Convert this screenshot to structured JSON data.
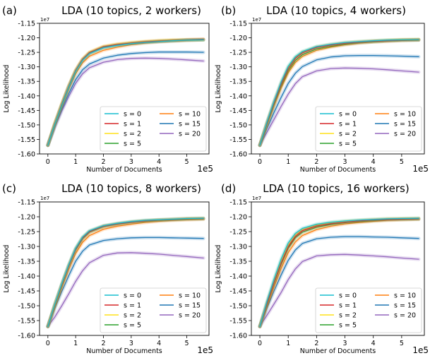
{
  "figure": {
    "xlabel": "Number of Documents",
    "ylabel": "Log Likelihood",
    "x_offset_text": "1e5",
    "y_offset_text": "1e7"
  },
  "legend_labels": [
    "s = 0",
    "s = 1",
    "s = 2",
    "s = 5",
    "s = 10",
    "s = 15",
    "s = 20"
  ],
  "series_colors": {
    "s = 0": "#17becf",
    "s = 1": "#d62728",
    "s = 2": "#ffe119",
    "s = 5": "#2ca02c",
    "s = 10": "#ff7f0e",
    "s = 15": "#1f77b4",
    "s = 20": "#9467bd"
  },
  "chart_data": [
    {
      "panel_label": "(a)",
      "title": "LDA (10 topics, 2 workers)",
      "type": "line",
      "xlabel": "Number of Documents",
      "ylabel": "Log Likelihood",
      "x_ticks": [
        0,
        1,
        2,
        3,
        4,
        5
      ],
      "y_ticks": [
        -1.6,
        -1.55,
        -1.5,
        -1.45,
        -1.4,
        -1.35,
        -1.3,
        -1.25,
        -1.2,
        -1.15
      ],
      "xlim": [
        -0.3,
        5.8
      ],
      "ylim": [
        -1.6,
        -1.15
      ],
      "legend_position": "lower right",
      "x": [
        0,
        0.25,
        0.5,
        0.75,
        1.0,
        1.25,
        1.5,
        2.0,
        2.5,
        3.0,
        3.5,
        4.0,
        4.5,
        5.0,
        5.6
      ],
      "series": [
        {
          "name": "s = 0",
          "values": [
            -1.57,
            -1.498,
            -1.432,
            -1.37,
            -1.316,
            -1.277,
            -1.254,
            -1.234,
            -1.226,
            -1.22,
            -1.216,
            -1.213,
            -1.21,
            -1.208,
            -1.207
          ]
        },
        {
          "name": "s = 1",
          "values": [
            -1.57,
            -1.496,
            -1.429,
            -1.367,
            -1.313,
            -1.274,
            -1.251,
            -1.231,
            -1.223,
            -1.218,
            -1.214,
            -1.211,
            -1.209,
            -1.207,
            -1.205
          ]
        },
        {
          "name": "s = 2",
          "values": [
            -1.57,
            -1.494,
            -1.427,
            -1.365,
            -1.311,
            -1.272,
            -1.249,
            -1.229,
            -1.221,
            -1.216,
            -1.212,
            -1.209,
            -1.207,
            -1.206,
            -1.205
          ]
        },
        {
          "name": "s = 5",
          "values": [
            -1.57,
            -1.497,
            -1.43,
            -1.368,
            -1.315,
            -1.276,
            -1.253,
            -1.233,
            -1.225,
            -1.219,
            -1.215,
            -1.212,
            -1.21,
            -1.208,
            -1.207
          ]
        },
        {
          "name": "s = 10",
          "values": [
            -1.57,
            -1.501,
            -1.436,
            -1.376,
            -1.324,
            -1.286,
            -1.263,
            -1.243,
            -1.232,
            -1.224,
            -1.218,
            -1.214,
            -1.211,
            -1.209,
            -1.207
          ]
        },
        {
          "name": "s = 15",
          "values": [
            -1.57,
            -1.505,
            -1.445,
            -1.392,
            -1.344,
            -1.31,
            -1.29,
            -1.27,
            -1.26,
            -1.254,
            -1.251,
            -1.249,
            -1.249,
            -1.249,
            -1.25
          ]
        },
        {
          "name": "s = 20",
          "values": [
            -1.57,
            -1.508,
            -1.452,
            -1.402,
            -1.357,
            -1.324,
            -1.303,
            -1.284,
            -1.275,
            -1.271,
            -1.27,
            -1.271,
            -1.273,
            -1.276,
            -1.28
          ]
        }
      ]
    },
    {
      "panel_label": "(b)",
      "title": "LDA (10 topics, 4 workers)",
      "type": "line",
      "xlabel": "Number of Documents",
      "ylabel": "Log Likelihood",
      "x_ticks": [
        0,
        1,
        2,
        3,
        4,
        5
      ],
      "y_ticks": [
        -1.6,
        -1.55,
        -1.5,
        -1.45,
        -1.4,
        -1.35,
        -1.3,
        -1.25,
        -1.2,
        -1.15
      ],
      "xlim": [
        -0.3,
        5.8
      ],
      "ylim": [
        -1.6,
        -1.15
      ],
      "legend_position": "lower right",
      "x": [
        0,
        0.25,
        0.5,
        0.75,
        1.0,
        1.25,
        1.5,
        2.0,
        2.5,
        3.0,
        3.5,
        4.0,
        4.5,
        5.0,
        5.6
      ],
      "series": [
        {
          "name": "s = 0",
          "values": [
            -1.57,
            -1.49,
            -1.418,
            -1.352,
            -1.298,
            -1.265,
            -1.247,
            -1.23,
            -1.222,
            -1.216,
            -1.213,
            -1.21,
            -1.208,
            -1.207,
            -1.206
          ]
        },
        {
          "name": "s = 1",
          "values": [
            -1.57,
            -1.494,
            -1.424,
            -1.36,
            -1.306,
            -1.271,
            -1.252,
            -1.233,
            -1.225,
            -1.219,
            -1.215,
            -1.212,
            -1.21,
            -1.208,
            -1.207
          ]
        },
        {
          "name": "s = 2",
          "values": [
            -1.57,
            -1.492,
            -1.421,
            -1.356,
            -1.302,
            -1.268,
            -1.249,
            -1.231,
            -1.223,
            -1.217,
            -1.213,
            -1.21,
            -1.208,
            -1.206,
            -1.205
          ]
        },
        {
          "name": "s = 5",
          "values": [
            -1.57,
            -1.497,
            -1.429,
            -1.366,
            -1.313,
            -1.278,
            -1.258,
            -1.238,
            -1.229,
            -1.222,
            -1.217,
            -1.214,
            -1.211,
            -1.209,
            -1.208
          ]
        },
        {
          "name": "s = 10",
          "values": [
            -1.57,
            -1.5,
            -1.434,
            -1.372,
            -1.32,
            -1.285,
            -1.264,
            -1.243,
            -1.232,
            -1.224,
            -1.218,
            -1.214,
            -1.211,
            -1.209,
            -1.207
          ]
        },
        {
          "name": "s = 15",
          "values": [
            -1.57,
            -1.512,
            -1.457,
            -1.405,
            -1.357,
            -1.322,
            -1.299,
            -1.276,
            -1.266,
            -1.262,
            -1.261,
            -1.261,
            -1.262,
            -1.263,
            -1.265
          ]
        },
        {
          "name": "s = 20",
          "values": [
            -1.57,
            -1.525,
            -1.481,
            -1.436,
            -1.394,
            -1.358,
            -1.334,
            -1.314,
            -1.306,
            -1.304,
            -1.305,
            -1.307,
            -1.31,
            -1.314,
            -1.318
          ]
        }
      ]
    },
    {
      "panel_label": "(c)",
      "title": "LDA (10 topics, 8 workers)",
      "type": "line",
      "xlabel": "Number of Documents",
      "ylabel": "Log Likelihood",
      "x_ticks": [
        0,
        1,
        2,
        3,
        4,
        5
      ],
      "y_ticks": [
        -1.6,
        -1.55,
        -1.5,
        -1.45,
        -1.4,
        -1.35,
        -1.3,
        -1.25,
        -1.2,
        -1.15
      ],
      "xlim": [
        -0.3,
        5.8
      ],
      "ylim": [
        -1.6,
        -1.15
      ],
      "legend_position": "lower right",
      "x": [
        0,
        0.25,
        0.5,
        0.75,
        1.0,
        1.25,
        1.5,
        2.0,
        2.5,
        3.0,
        3.5,
        4.0,
        4.5,
        5.0,
        5.6
      ],
      "series": [
        {
          "name": "s = 0",
          "values": [
            -1.57,
            -1.495,
            -1.426,
            -1.362,
            -1.306,
            -1.268,
            -1.247,
            -1.23,
            -1.222,
            -1.216,
            -1.212,
            -1.21,
            -1.208,
            -1.206,
            -1.205
          ]
        },
        {
          "name": "s = 1",
          "values": [
            -1.57,
            -1.497,
            -1.429,
            -1.366,
            -1.31,
            -1.272,
            -1.25,
            -1.232,
            -1.224,
            -1.218,
            -1.214,
            -1.211,
            -1.209,
            -1.207,
            -1.206
          ]
        },
        {
          "name": "s = 2",
          "values": [
            -1.57,
            -1.496,
            -1.428,
            -1.364,
            -1.308,
            -1.27,
            -1.249,
            -1.231,
            -1.223,
            -1.217,
            -1.213,
            -1.21,
            -1.208,
            -1.206,
            -1.205
          ]
        },
        {
          "name": "s = 5",
          "values": [
            -1.57,
            -1.498,
            -1.43,
            -1.367,
            -1.312,
            -1.274,
            -1.252,
            -1.233,
            -1.225,
            -1.219,
            -1.215,
            -1.212,
            -1.21,
            -1.208,
            -1.207
          ]
        },
        {
          "name": "s = 10",
          "values": [
            -1.57,
            -1.503,
            -1.439,
            -1.378,
            -1.324,
            -1.286,
            -1.263,
            -1.242,
            -1.232,
            -1.225,
            -1.219,
            -1.215,
            -1.212,
            -1.21,
            -1.208
          ]
        },
        {
          "name": "s = 15",
          "values": [
            -1.57,
            -1.509,
            -1.452,
            -1.399,
            -1.35,
            -1.316,
            -1.295,
            -1.28,
            -1.274,
            -1.271,
            -1.27,
            -1.27,
            -1.271,
            -1.272,
            -1.273
          ]
        },
        {
          "name": "s = 20",
          "values": [
            -1.57,
            -1.538,
            -1.5,
            -1.46,
            -1.418,
            -1.382,
            -1.355,
            -1.33,
            -1.322,
            -1.321,
            -1.323,
            -1.326,
            -1.33,
            -1.334,
            -1.339
          ]
        }
      ]
    },
    {
      "panel_label": "(d)",
      "title": "LDA (10 topics, 16 workers)",
      "type": "line",
      "xlabel": "Number of Documents",
      "ylabel": "Log Likelihood",
      "x_ticks": [
        0,
        1,
        2,
        3,
        4,
        5
      ],
      "y_ticks": [
        -1.6,
        -1.55,
        -1.5,
        -1.45,
        -1.4,
        -1.35,
        -1.3,
        -1.25,
        -1.2,
        -1.15
      ],
      "xlim": [
        -0.3,
        5.8
      ],
      "ylim": [
        -1.6,
        -1.15
      ],
      "legend_position": "lower right",
      "x": [
        0,
        0.25,
        0.5,
        0.75,
        1.0,
        1.25,
        1.5,
        2.0,
        2.5,
        3.0,
        3.5,
        4.0,
        4.5,
        5.0,
        5.6
      ],
      "series": [
        {
          "name": "s = 0",
          "values": [
            -1.57,
            -1.485,
            -1.41,
            -1.342,
            -1.288,
            -1.256,
            -1.239,
            -1.225,
            -1.218,
            -1.214,
            -1.211,
            -1.209,
            -1.207,
            -1.206,
            -1.205
          ]
        },
        {
          "name": "s = 1",
          "values": [
            -1.57,
            -1.493,
            -1.422,
            -1.356,
            -1.301,
            -1.266,
            -1.247,
            -1.231,
            -1.223,
            -1.218,
            -1.214,
            -1.211,
            -1.209,
            -1.208,
            -1.207
          ]
        },
        {
          "name": "s = 2",
          "values": [
            -1.57,
            -1.49,
            -1.417,
            -1.35,
            -1.295,
            -1.261,
            -1.243,
            -1.228,
            -1.22,
            -1.215,
            -1.212,
            -1.209,
            -1.207,
            -1.206,
            -1.205
          ]
        },
        {
          "name": "s = 5",
          "values": [
            -1.57,
            -1.495,
            -1.425,
            -1.36,
            -1.306,
            -1.271,
            -1.252,
            -1.235,
            -1.226,
            -1.22,
            -1.216,
            -1.213,
            -1.21,
            -1.209,
            -1.208
          ]
        },
        {
          "name": "s = 10",
          "values": [
            -1.57,
            -1.501,
            -1.436,
            -1.374,
            -1.321,
            -1.285,
            -1.263,
            -1.243,
            -1.232,
            -1.224,
            -1.219,
            -1.215,
            -1.212,
            -1.21,
            -1.208
          ]
        },
        {
          "name": "s = 15",
          "values": [
            -1.57,
            -1.508,
            -1.45,
            -1.396,
            -1.347,
            -1.312,
            -1.29,
            -1.274,
            -1.269,
            -1.267,
            -1.267,
            -1.268,
            -1.269,
            -1.271,
            -1.273
          ]
        },
        {
          "name": "s = 20",
          "values": [
            -1.57,
            -1.532,
            -1.494,
            -1.455,
            -1.412,
            -1.376,
            -1.351,
            -1.332,
            -1.328,
            -1.327,
            -1.329,
            -1.332,
            -1.335,
            -1.339,
            -1.343
          ]
        }
      ]
    }
  ]
}
